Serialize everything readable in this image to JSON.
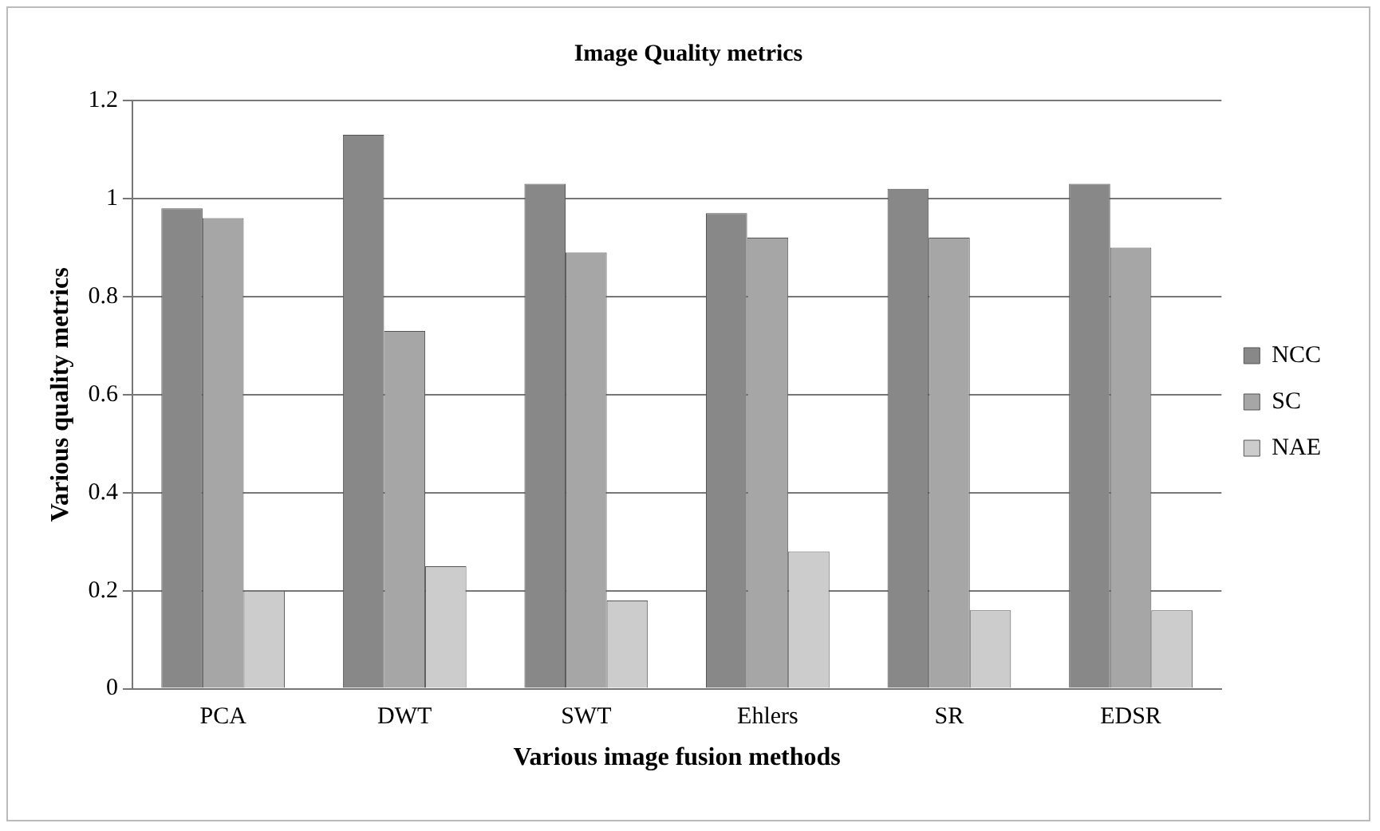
{
  "chart_data": {
    "type": "bar",
    "title": "Image Quality metrics",
    "xlabel": "Various image fusion methods",
    "ylabel": "Various quality metrics",
    "categories": [
      "PCA",
      "DWT",
      "SWT",
      "Ehlers",
      "SR",
      "EDSR"
    ],
    "series": [
      {
        "name": "NCC",
        "color": "#888888",
        "values": [
          0.98,
          1.13,
          1.03,
          0.97,
          1.02,
          1.03
        ]
      },
      {
        "name": "SC",
        "color": "#a6a6a6",
        "values": [
          0.96,
          0.73,
          0.89,
          0.92,
          0.92,
          0.9
        ]
      },
      {
        "name": "NAE",
        "color": "#cccccc",
        "values": [
          0.2,
          0.25,
          0.18,
          0.28,
          0.16,
          0.16
        ]
      }
    ],
    "ylim": [
      0,
      1.2
    ],
    "yticks": [
      0,
      0.2,
      0.4,
      0.6,
      0.8,
      1,
      1.2
    ],
    "grid": "y",
    "legend": "right"
  }
}
